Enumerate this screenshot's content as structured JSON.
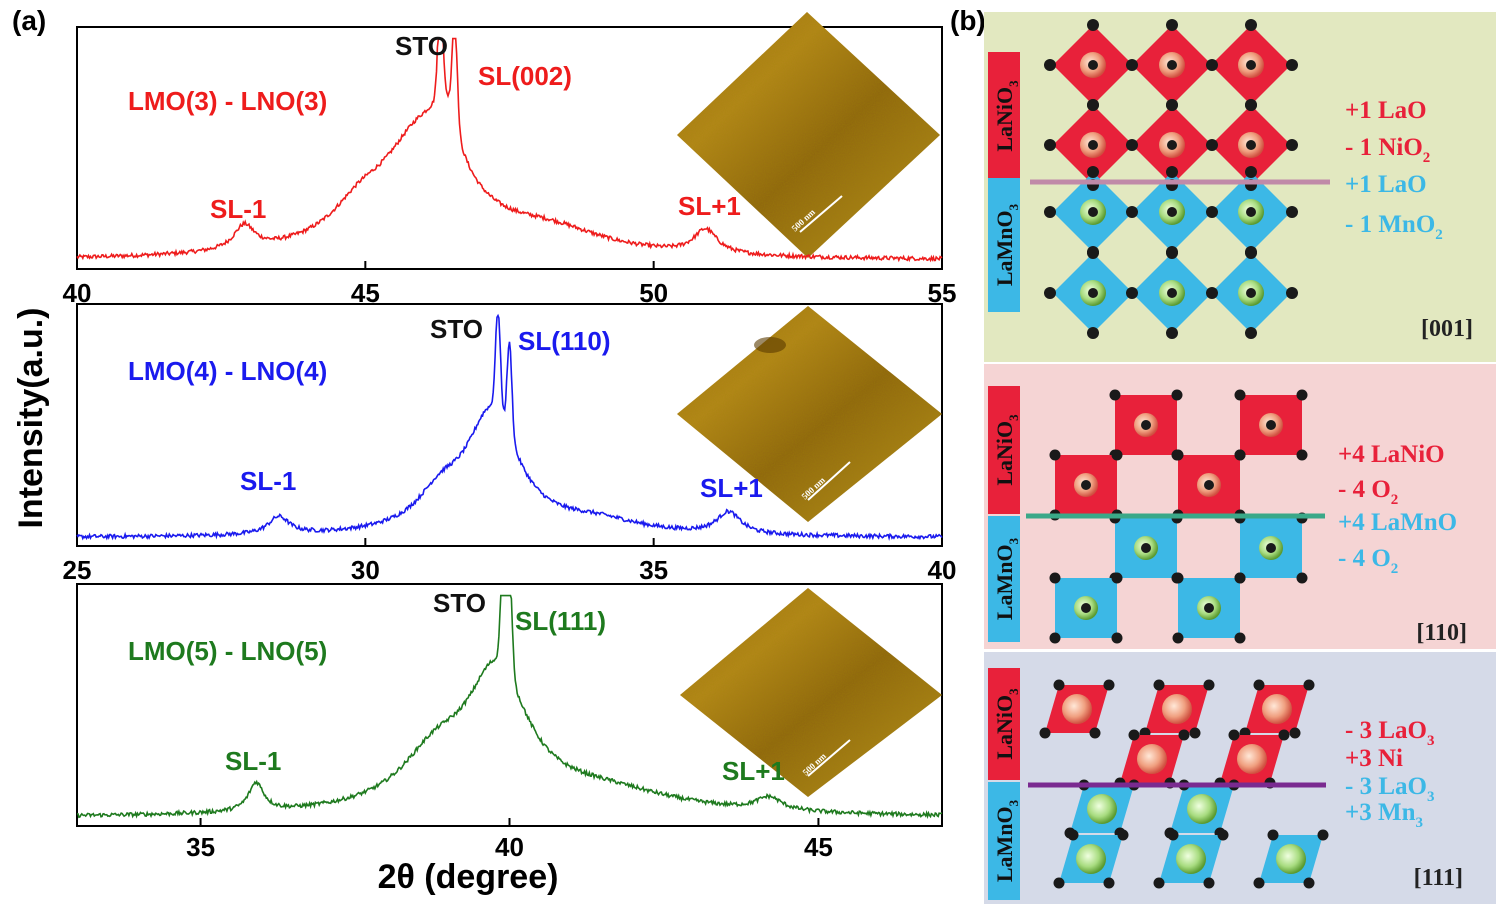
{
  "panel_labels": {
    "a": "(a)",
    "b": "(b)"
  },
  "chart_data": [
    {
      "type": "line",
      "title": "LMO(3) - LNO(3)",
      "color": "#ee1c1c",
      "xlim": [
        40,
        55
      ],
      "xticks": [
        40,
        45,
        50,
        55
      ],
      "peaks": [
        {
          "x": 42.9,
          "h": 0.11,
          "w": 0.22
        },
        {
          "x": 46.0,
          "h": 0.55,
          "w": 0.9
        },
        {
          "x": 46.4,
          "h": 0.25,
          "w": 0.25
        },
        {
          "x": 44.9,
          "h": 0.12,
          "w": 0.6
        },
        {
          "x": 48.2,
          "h": 0.1,
          "w": 1.2
        },
        {
          "x": 50.9,
          "h": 0.11,
          "w": 0.25
        }
      ],
      "spikes": [
        {
          "x": 46.3,
          "h": 0.95
        },
        {
          "x": 46.55,
          "h": 0.98
        }
      ],
      "annotations": [
        {
          "id": "sto",
          "text": "STO",
          "x": 45.5,
          "color": "#111111"
        },
        {
          "id": "main",
          "text": "SL(002)",
          "x": 47.7,
          "color": "#ee1c1c"
        },
        {
          "id": "sl_minus",
          "text": "SL-1",
          "x": 42.9,
          "color": "#ee1c1c"
        },
        {
          "id": "sl_plus",
          "text": "SL+1",
          "x": 51.0,
          "color": "#ee1c1c"
        }
      ],
      "afm_scale": "500 nm"
    },
    {
      "type": "line",
      "title": "LMO(4) - LNO(4)",
      "color": "#1a1aee",
      "xlim": [
        25,
        40
      ],
      "xticks": [
        25,
        30,
        35,
        40
      ],
      "peaks": [
        {
          "x": 28.5,
          "h": 0.08,
          "w": 0.22
        },
        {
          "x": 32.2,
          "h": 0.55,
          "w": 0.55
        },
        {
          "x": 31.3,
          "h": 0.14,
          "w": 0.5
        },
        {
          "x": 34.0,
          "h": 0.06,
          "w": 1.0
        },
        {
          "x": 36.3,
          "h": 0.1,
          "w": 0.25
        }
      ],
      "spikes": [
        {
          "x": 32.3,
          "h": 0.96
        },
        {
          "x": 32.5,
          "h": 0.92
        }
      ],
      "annotations": [
        {
          "id": "sto",
          "text": "STO",
          "x": 31.6,
          "color": "#111111"
        },
        {
          "id": "main",
          "text": "SL(110)",
          "x": 33.3,
          "color": "#1a1aee"
        },
        {
          "id": "sl_minus",
          "text": "SL-1",
          "x": 28.1,
          "color": "#1a1aee"
        },
        {
          "id": "sl_plus",
          "text": "SL+1",
          "x": 36.4,
          "color": "#1a1aee"
        }
      ],
      "afm_scale": "500 nm"
    },
    {
      "type": "line",
      "title": "LMO(5) - LNO(5)",
      "color": "#1e7a1e",
      "xlim": [
        33,
        47
      ],
      "xticks": [
        35,
        40,
        45
      ],
      "peaks": [
        {
          "x": 35.9,
          "h": 0.13,
          "w": 0.15
        },
        {
          "x": 39.8,
          "h": 0.6,
          "w": 0.6
        },
        {
          "x": 38.8,
          "h": 0.22,
          "w": 0.7
        },
        {
          "x": 41.5,
          "h": 0.1,
          "w": 1.5
        },
        {
          "x": 44.2,
          "h": 0.06,
          "w": 0.25
        }
      ],
      "spikes": [
        {
          "x": 39.9,
          "h": 0.99
        },
        {
          "x": 40.0,
          "h": 0.97
        }
      ],
      "annotations": [
        {
          "id": "sto",
          "text": "STO",
          "x": 38.8,
          "color": "#111111"
        },
        {
          "id": "main",
          "text": "SL(111)",
          "x": 41.9,
          "color": "#1e7a1e"
        },
        {
          "id": "sl_minus",
          "text": "SL-1",
          "x": 35.7,
          "color": "#1e7a1e"
        },
        {
          "id": "sl_plus",
          "text": "SL+1",
          "x": 44.3,
          "color": "#1e7a1e"
        }
      ],
      "afm_scale": "500 nm"
    }
  ],
  "axes": {
    "ylabel": "Intensity(a.u.)",
    "xlabel": "2θ (degree)"
  },
  "structures": {
    "label_lno": "LaNiO",
    "label_lmo": "LaMnO",
    "sub3": "3",
    "panels": [
      {
        "orientation": "[001]",
        "layers": [
          {
            "charge": "+1",
            "name": "LaO",
            "sub": ""
          },
          {
            "charge": "- 1",
            "name": "NiO",
            "sub": "2"
          },
          {
            "charge": "+1",
            "name": "LaO",
            "sub": ""
          },
          {
            "charge": "- 1",
            "name": "MnO",
            "sub": "2"
          }
        ]
      },
      {
        "orientation": "[110]",
        "layers": [
          {
            "charge": "+4",
            "name": "LaNiO",
            "sub": ""
          },
          {
            "charge": "- 4",
            "name": "O",
            "sub": "2"
          },
          {
            "charge": "+4",
            "name": "LaMnO",
            "sub": ""
          },
          {
            "charge": "- 4",
            "name": "O",
            "sub": "2"
          }
        ]
      },
      {
        "orientation": "[111]",
        "layers": [
          {
            "charge": "- 3",
            "name": "LaO",
            "sub": "3"
          },
          {
            "charge": "+3",
            "name": "Ni",
            "sub": ""
          },
          {
            "charge": "- 3",
            "name": "LaO",
            "sub": "3"
          },
          {
            "charge": "+3",
            "name": "Mn",
            "sub": "3"
          }
        ]
      }
    ]
  },
  "colors": {
    "lno": "#e8213a",
    "lmo": "#3cb8e6",
    "bg001": "#e2e8c0",
    "bg110": "#f5d4d4",
    "bg111": "#d5dae8",
    "atom": "#1a1a1a"
  }
}
